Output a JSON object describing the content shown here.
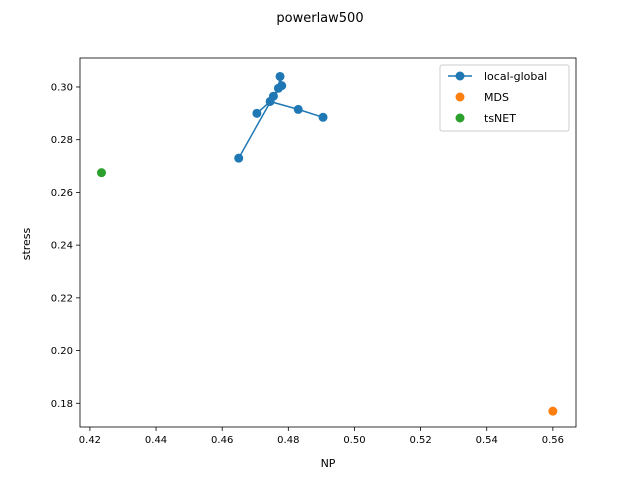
{
  "chart_data": {
    "type": "scatter",
    "title": "powerlaw500",
    "xlabel": "NP",
    "ylabel": "stress",
    "xlim": [
      0.417,
      0.567
    ],
    "ylim": [
      0.171,
      0.311
    ],
    "xticks": [
      "0.42",
      "0.44",
      "0.46",
      "0.48",
      "0.50",
      "0.52",
      "0.54",
      "0.56"
    ],
    "yticks": [
      "0.18",
      "0.20",
      "0.22",
      "0.24",
      "0.26",
      "0.28",
      "0.30"
    ],
    "xtick_values": [
      0.42,
      0.44,
      0.46,
      0.48,
      0.5,
      0.52,
      0.54,
      0.56
    ],
    "ytick_values": [
      0.18,
      0.2,
      0.22,
      0.24,
      0.26,
      0.28,
      0.3
    ],
    "legend_position": "top-right",
    "series": [
      {
        "name": "local-global",
        "color": "#1f77b4",
        "style": "line-marker",
        "x": [
          0.465,
          0.4705,
          0.4745,
          0.4755,
          0.477,
          0.4775,
          0.478,
          0.483,
          0.4905
        ],
        "y": [
          0.273,
          0.29,
          0.2945,
          0.2965,
          0.2995,
          0.304,
          0.3005,
          0.2915,
          0.2885
        ],
        "path_order": [
          0,
          3,
          4,
          5,
          6,
          2,
          1,
          2,
          7,
          8
        ]
      },
      {
        "name": "MDS",
        "color": "#ff7f0e",
        "style": "marker",
        "x": [
          0.56
        ],
        "y": [
          0.177
        ]
      },
      {
        "name": "tsNET",
        "color": "#2ca02c",
        "style": "marker",
        "x": [
          0.4235
        ],
        "y": [
          0.2675
        ]
      }
    ]
  }
}
